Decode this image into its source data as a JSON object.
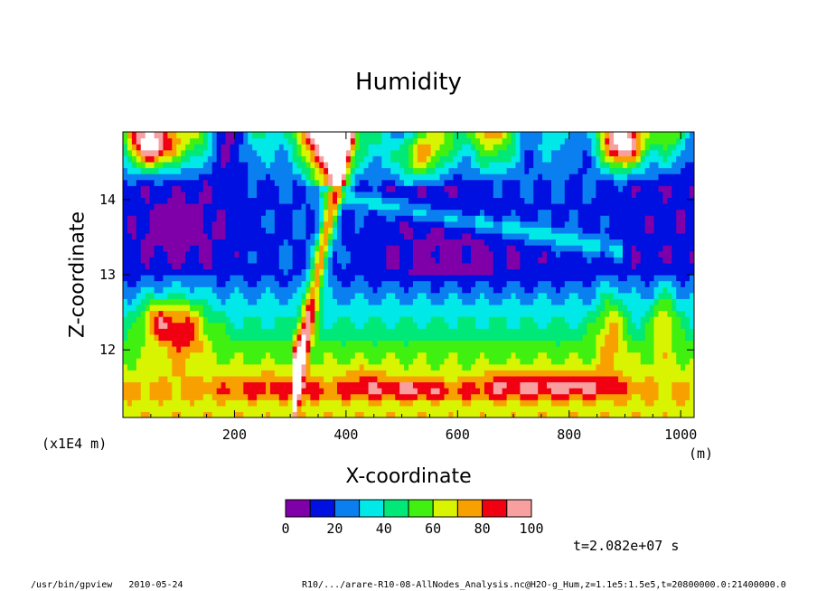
{
  "chart_data": {
    "type": "heatmap",
    "title": "Humidity",
    "xlabel": "X-coordinate",
    "ylabel": "Z-coordinate",
    "x_unit": "(m)",
    "y_unit": "(x1E4 m)",
    "xlim": [
      0,
      1024
    ],
    "ylim": [
      11.1,
      14.9
    ],
    "x_ticks": [
      200,
      400,
      600,
      800,
      1000
    ],
    "y_ticks": [
      12,
      13,
      14
    ],
    "colorbar": {
      "levels": [
        0,
        10,
        20,
        30,
        40,
        50,
        60,
        70,
        80,
        90,
        100
      ],
      "tick_labels": [
        "0",
        "20",
        "40",
        "60",
        "80",
        "100"
      ],
      "colors": [
        "#7f00a8",
        "#0010e0",
        "#0a80f0",
        "#00e8e8",
        "#00e878",
        "#40f010",
        "#d8f400",
        "#f8a000",
        "#f00010",
        "#f8a0a0"
      ]
    }
  },
  "time_label": "t=2.082e+07 s",
  "footer": {
    "left": "/usr/bin/gpview   2010-05-24",
    "right": "R10/.../arare-R10-08-AllNodes_Analysis.nc@H2O-g_Hum,z=1.1e5:1.5e5,t=20800000.0:21400000.0"
  }
}
